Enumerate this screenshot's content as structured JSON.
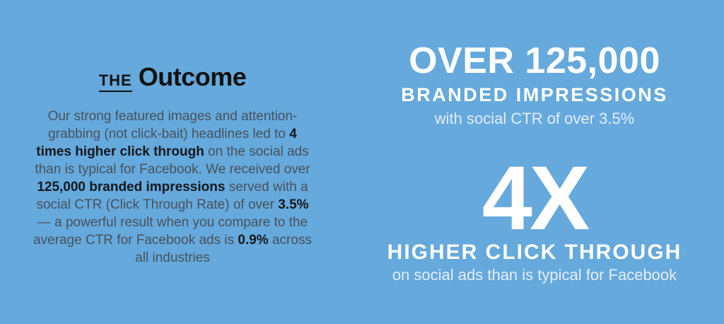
{
  "colors": {
    "background": "#66a9dc",
    "heading-text": "#121212",
    "body-text": "#47525d",
    "body-text-strong": "#15191d",
    "stat-text": "#ffffff",
    "caption-text": "#e3eefa"
  },
  "left": {
    "heading_small": "THE",
    "heading_large": "Outcome",
    "paragraph": [
      {
        "text": "Our strong featured images and attention-grabbing (not click-bait) headlines led to ",
        "bold": false
      },
      {
        "text": "4 times higher click through",
        "bold": true
      },
      {
        "text": " on the social ads than is typical for Facebook. We received over ",
        "bold": false
      },
      {
        "text": "125,000 branded impressions",
        "bold": true
      },
      {
        "text": " served with a social CTR (Click Through Rate) of over ",
        "bold": false
      },
      {
        "text": "3.5%",
        "bold": true
      },
      {
        "text": " — a powerful result when you compare to the average CTR for Facebook ads is ",
        "bold": false
      },
      {
        "text": "0.9%",
        "bold": true
      },
      {
        "text": " across all industries",
        "bold": false
      }
    ]
  },
  "stats": [
    {
      "title": "OVER 125,000",
      "subtitle": "BRANDED IMPRESSIONS",
      "caption": "with social CTR of over 3.5%"
    },
    {
      "title": "4X",
      "subtitle": "HIGHER CLICK THROUGH",
      "caption": "on social ads than is typical for Facebook"
    }
  ]
}
